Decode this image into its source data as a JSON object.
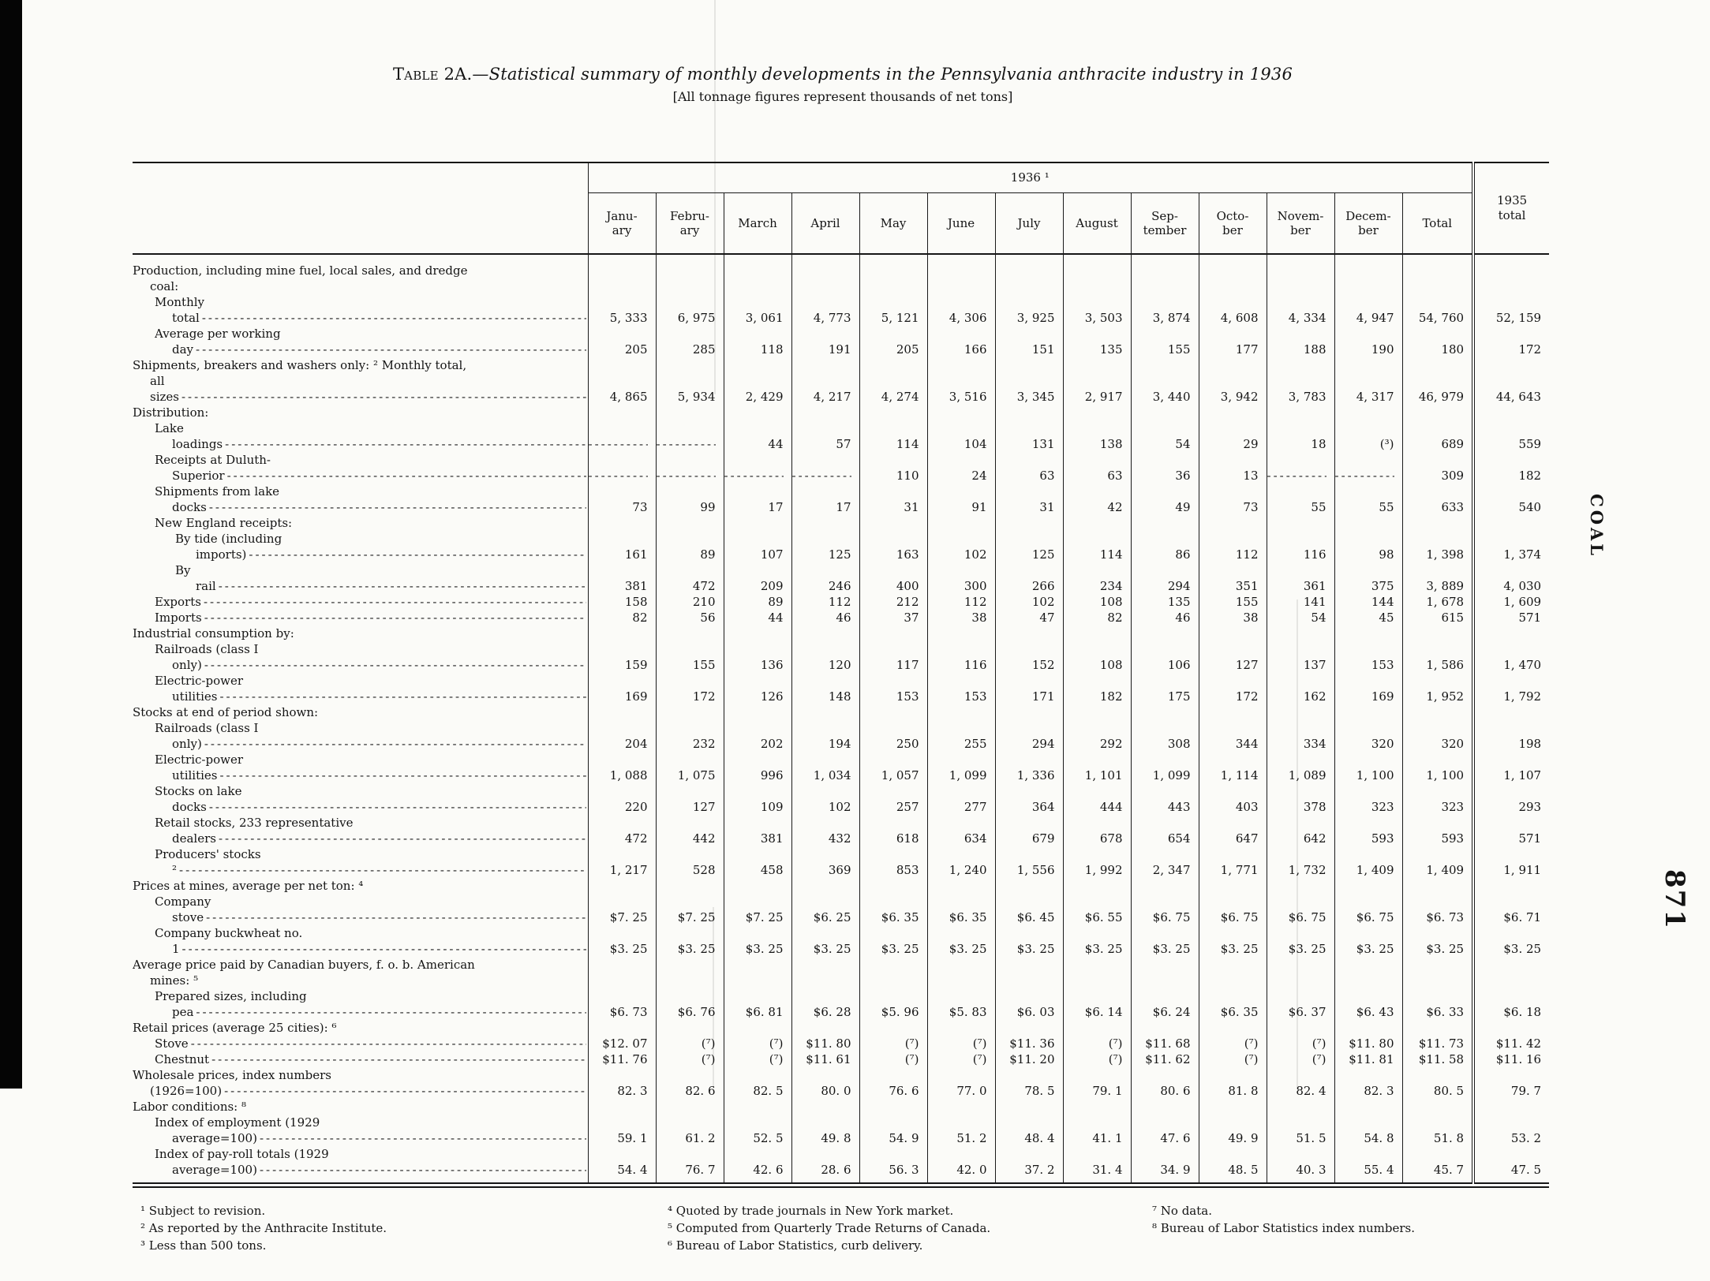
{
  "page": {
    "title_label": "Table 2A.",
    "title_rest": "—Statistical summary of monthly developments in the Pennsylvania anthracite industry in 1936",
    "subtitle": "[All tonnage figures represent thousands of net tons]",
    "side_text": "COAL",
    "page_number": "871"
  },
  "table": {
    "year_header": "1936 ¹",
    "last_col_header": "1935\ntotal",
    "month_headers": [
      "Janu-\nary",
      "Febru-\nary",
      "March",
      "April",
      "May",
      "June",
      "July",
      "August",
      "Sep-\ntember",
      "Octo-\nber",
      "Novem-\nber",
      "Decem-\nber",
      "Total"
    ],
    "rows": [
      {
        "type": "section",
        "indent": 0,
        "label": "Production, including mine fuel, local sales, and dredge\ncoal:"
      },
      {
        "type": "data",
        "indent": 1,
        "label": "Monthly total",
        "values": [
          "5, 333",
          "6, 975",
          "3, 061",
          "4, 773",
          "5, 121",
          "4, 306",
          "3, 925",
          "3, 503",
          "3, 874",
          "4, 608",
          "4, 334",
          "4, 947",
          "54, 760",
          "52, 159"
        ]
      },
      {
        "type": "data",
        "indent": 1,
        "label": "Average per working day",
        "values": [
          "205",
          "285",
          "118",
          "191",
          "205",
          "166",
          "151",
          "135",
          "155",
          "177",
          "188",
          "190",
          "180",
          "172"
        ]
      },
      {
        "type": "data",
        "indent": 0,
        "label": "Shipments, breakers and washers only: ² Monthly total,\nall sizes",
        "values": [
          "4, 865",
          "5, 934",
          "2, 429",
          "4, 217",
          "4, 274",
          "3, 516",
          "3, 345",
          "2, 917",
          "3, 440",
          "3, 942",
          "3, 783",
          "4, 317",
          "46, 979",
          "44, 643"
        ]
      },
      {
        "type": "section",
        "indent": 0,
        "label": "Distribution:"
      },
      {
        "type": "data",
        "indent": 1,
        "label": "Lake loadings",
        "values": [
          "",
          "",
          "44",
          "57",
          "114",
          "104",
          "131",
          "138",
          "54",
          "29",
          "18",
          "(³)",
          "689",
          "559"
        ]
      },
      {
        "type": "data",
        "indent": 1,
        "label": "Receipts at Duluth-Superior",
        "values": [
          "",
          "",
          "",
          "",
          "110",
          "24",
          "63",
          "63",
          "36",
          "13",
          "",
          "",
          "309",
          "182"
        ]
      },
      {
        "type": "data",
        "indent": 1,
        "label": "Shipments from lake docks",
        "values": [
          "73",
          "99",
          "17",
          "17",
          "31",
          "91",
          "31",
          "42",
          "49",
          "73",
          "55",
          "55",
          "633",
          "540"
        ]
      },
      {
        "type": "section",
        "indent": 1,
        "label": "New England receipts:"
      },
      {
        "type": "data",
        "indent": 2,
        "label": "By tide (including imports)",
        "values": [
          "161",
          "89",
          "107",
          "125",
          "163",
          "102",
          "125",
          "114",
          "86",
          "112",
          "116",
          "98",
          "1, 398",
          "1, 374"
        ]
      },
      {
        "type": "data",
        "indent": 2,
        "label": "By rail",
        "values": [
          "381",
          "472",
          "209",
          "246",
          "400",
          "300",
          "266",
          "234",
          "294",
          "351",
          "361",
          "375",
          "3, 889",
          "4, 030"
        ]
      },
      {
        "type": "data",
        "indent": 1,
        "label": "Exports",
        "values": [
          "158",
          "210",
          "89",
          "112",
          "212",
          "112",
          "102",
          "108",
          "135",
          "155",
          "141",
          "144",
          "1, 678",
          "1, 609"
        ]
      },
      {
        "type": "data",
        "indent": 1,
        "label": "Imports",
        "values": [
          "82",
          "56",
          "44",
          "46",
          "37",
          "38",
          "47",
          "82",
          "46",
          "38",
          "54",
          "45",
          "615",
          "571"
        ]
      },
      {
        "type": "section",
        "indent": 0,
        "label": "Industrial consumption by:"
      },
      {
        "type": "data",
        "indent": 1,
        "label": "Railroads (class I only)",
        "values": [
          "159",
          "155",
          "136",
          "120",
          "117",
          "116",
          "152",
          "108",
          "106",
          "127",
          "137",
          "153",
          "1, 586",
          "1, 470"
        ]
      },
      {
        "type": "data",
        "indent": 1,
        "label": "Electric-power utilities",
        "values": [
          "169",
          "172",
          "126",
          "148",
          "153",
          "153",
          "171",
          "182",
          "175",
          "172",
          "162",
          "169",
          "1, 952",
          "1, 792"
        ]
      },
      {
        "type": "section",
        "indent": 0,
        "label": "Stocks at end of period shown:"
      },
      {
        "type": "data",
        "indent": 1,
        "label": "Railroads (class I only)",
        "values": [
          "204",
          "232",
          "202",
          "194",
          "250",
          "255",
          "294",
          "292",
          "308",
          "344",
          "334",
          "320",
          "320",
          "198"
        ]
      },
      {
        "type": "data",
        "indent": 1,
        "label": "Electric-power utilities",
        "values": [
          "1, 088",
          "1, 075",
          "996",
          "1, 034",
          "1, 057",
          "1, 099",
          "1, 336",
          "1, 101",
          "1, 099",
          "1, 114",
          "1, 089",
          "1, 100",
          "1, 100",
          "1, 107"
        ]
      },
      {
        "type": "data",
        "indent": 1,
        "label": "Stocks on lake docks",
        "values": [
          "220",
          "127",
          "109",
          "102",
          "257",
          "277",
          "364",
          "444",
          "443",
          "403",
          "378",
          "323",
          "323",
          "293"
        ]
      },
      {
        "type": "data",
        "indent": 1,
        "label": "Retail stocks, 233 representative dealers",
        "values": [
          "472",
          "442",
          "381",
          "432",
          "618",
          "634",
          "679",
          "678",
          "654",
          "647",
          "642",
          "593",
          "593",
          "571"
        ]
      },
      {
        "type": "data",
        "indent": 1,
        "label": "Producers' stocks ²",
        "values": [
          "1, 217",
          "528",
          "458",
          "369",
          "853",
          "1, 240",
          "1, 556",
          "1, 992",
          "2, 347",
          "1, 771",
          "1, 732",
          "1, 409",
          "1, 409",
          "1, 911"
        ]
      },
      {
        "type": "section",
        "indent": 0,
        "label": "Prices at mines, average per net ton: ⁴"
      },
      {
        "type": "data",
        "indent": 1,
        "label": "Company stove",
        "values": [
          "$7. 25",
          "$7. 25",
          "$7. 25",
          "$6. 25",
          "$6. 35",
          "$6. 35",
          "$6. 45",
          "$6. 55",
          "$6. 75",
          "$6. 75",
          "$6. 75",
          "$6. 75",
          "$6. 73",
          "$6. 71"
        ]
      },
      {
        "type": "data",
        "indent": 1,
        "label": "Company buckwheat no. 1",
        "values": [
          "$3. 25",
          "$3. 25",
          "$3. 25",
          "$3. 25",
          "$3. 25",
          "$3. 25",
          "$3. 25",
          "$3. 25",
          "$3. 25",
          "$3. 25",
          "$3. 25",
          "$3. 25",
          "$3. 25",
          "$3. 25"
        ]
      },
      {
        "type": "section",
        "indent": 0,
        "label": "Average price paid by Canadian buyers, f. o. b. American\nmines: ⁵"
      },
      {
        "type": "data",
        "indent": 1,
        "label": "Prepared sizes, including pea",
        "values": [
          "$6. 73",
          "$6. 76",
          "$6. 81",
          "$6. 28",
          "$5. 96",
          "$5. 83",
          "$6. 03",
          "$6. 14",
          "$6. 24",
          "$6. 35",
          "$6. 37",
          "$6. 43",
          "$6. 33",
          "$6. 18"
        ]
      },
      {
        "type": "section",
        "indent": 0,
        "label": "Retail prices (average 25 cities): ⁶"
      },
      {
        "type": "data",
        "indent": 1,
        "label": "Stove",
        "values": [
          "$12. 07",
          "(⁷)",
          "(⁷)",
          "$11. 80",
          "(⁷)",
          "(⁷)",
          "$11. 36",
          "(⁷)",
          "$11. 68",
          "(⁷)",
          "(⁷)",
          "$11. 80",
          "$11. 73",
          "$11. 42"
        ]
      },
      {
        "type": "data",
        "indent": 1,
        "label": "Chestnut",
        "values": [
          "$11. 76",
          "(⁷)",
          "(⁷)",
          "$11. 61",
          "(⁷)",
          "(⁷)",
          "$11. 20",
          "(⁷)",
          "$11. 62",
          "(⁷)",
          "(⁷)",
          "$11. 81",
          "$11. 58",
          "$11. 16"
        ]
      },
      {
        "type": "data",
        "indent": 0,
        "label": "Wholesale prices, index numbers (1926=100)",
        "values": [
          "82. 3",
          "82. 6",
          "82. 5",
          "80. 0",
          "76. 6",
          "77. 0",
          "78. 5",
          "79. 1",
          "80. 6",
          "81. 8",
          "82. 4",
          "82. 3",
          "80. 5",
          "79. 7"
        ]
      },
      {
        "type": "section",
        "indent": 0,
        "label": "Labor conditions: ⁸"
      },
      {
        "type": "data",
        "indent": 1,
        "label": "Index of employment (1929 average=100)",
        "values": [
          "59. 1",
          "61. 2",
          "52. 5",
          "49. 8",
          "54. 9",
          "51. 2",
          "48. 4",
          "41. 1",
          "47. 6",
          "49. 9",
          "51. 5",
          "54. 8",
          "51. 8",
          "53. 2"
        ]
      },
      {
        "type": "data",
        "indent": 1,
        "label": "Index of pay-roll totals (1929 average=100)",
        "values": [
          "54. 4",
          "76. 7",
          "42. 6",
          "28. 6",
          "56. 3",
          "42. 0",
          "37. 2",
          "31. 4",
          "34. 9",
          "48. 5",
          "40. 3",
          "55. 4",
          "45. 7",
          "47. 5"
        ]
      }
    ]
  },
  "footnotes": {
    "col1": [
      "¹ Subject to revision.",
      "² As reported by the Anthracite Institute.",
      "³ Less than 500 tons."
    ],
    "col2": [
      "⁴ Quoted by trade journals in New York market.",
      "⁵ Computed from Quarterly Trade Returns of Canada.",
      "⁶ Bureau of Labor Statistics, curb delivery."
    ],
    "col3": [
      "⁷ No data.",
      "⁸ Bureau of Labor Statistics index numbers."
    ]
  }
}
